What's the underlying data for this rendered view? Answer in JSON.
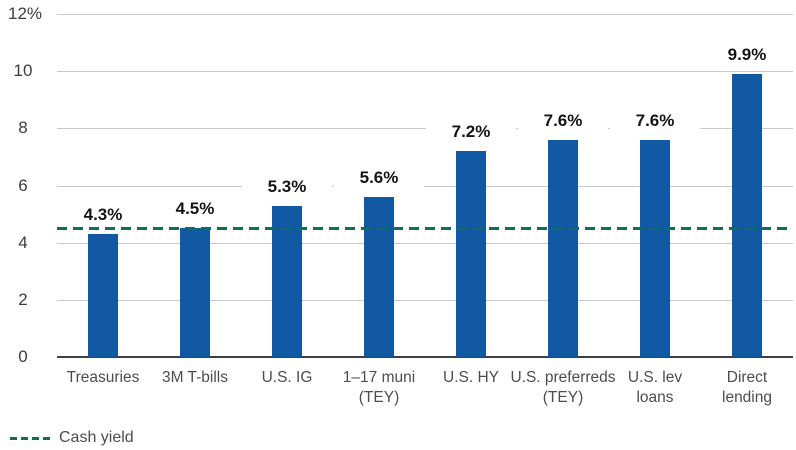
{
  "chart_data": {
    "type": "bar",
    "categories": [
      "Treasuries",
      "3M T-bills",
      "U.S. IG",
      "1–17 muni\n(TEY)",
      "U.S. HY",
      "U.S. preferreds\n(TEY)",
      "U.S. lev\nloans",
      "Direct\nlending"
    ],
    "values": [
      4.3,
      4.5,
      5.3,
      5.6,
      7.2,
      7.6,
      7.6,
      9.9
    ],
    "data_labels": [
      "4.3%",
      "4.5%",
      "5.3%",
      "5.6%",
      "7.2%",
      "7.6%",
      "7.6%",
      "9.9%"
    ],
    "y_ticks": [
      {
        "value": 0,
        "label": "0"
      },
      {
        "value": 2,
        "label": "2"
      },
      {
        "value": 4,
        "label": "4"
      },
      {
        "value": 6,
        "label": "6"
      },
      {
        "value": 8,
        "label": "8"
      },
      {
        "value": 10,
        "label": "10"
      },
      {
        "value": 12,
        "label": "12%"
      }
    ],
    "ylim": [
      0,
      12
    ],
    "grid": true,
    "bar_color": "#1159a3",
    "reference_line": {
      "label": "Cash yield",
      "value": 4.5,
      "color": "#0e6f58",
      "style": "dashed"
    },
    "legend_position": "bottom-left",
    "title": "",
    "xlabel": "",
    "ylabel": ""
  }
}
